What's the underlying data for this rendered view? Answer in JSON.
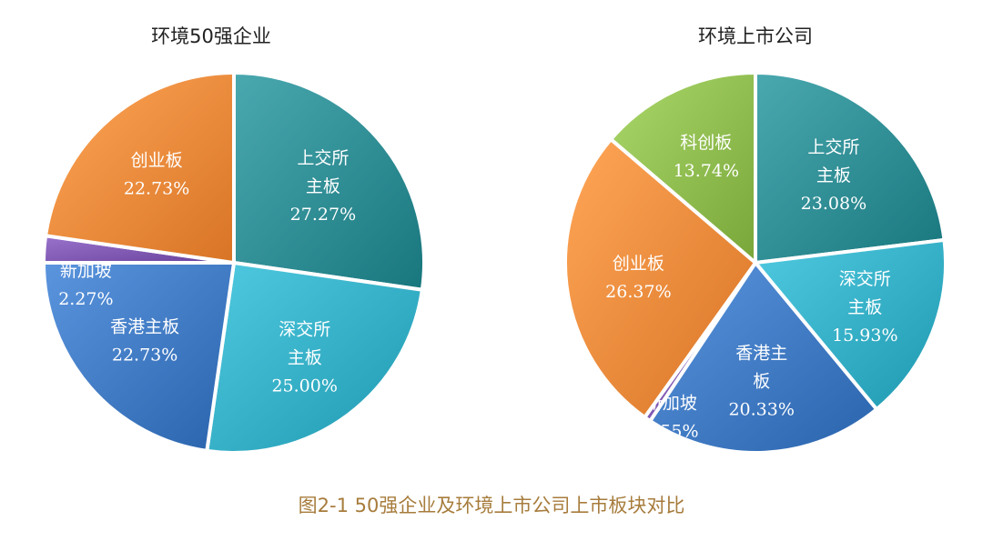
{
  "figure": {
    "caption": "图2-1 50强企业及环境上市公司上市板块对比"
  },
  "chart_data": [
    {
      "type": "pie",
      "title": "环境50强企业",
      "slices": [
        {
          "label_lines": [
            "上交所",
            "主板"
          ],
          "value": 27.27,
          "value_text": "27.27%",
          "color": "#2e8c93"
        },
        {
          "label_lines": [
            "深交所",
            "主板"
          ],
          "value": 25.0,
          "value_text": "25.00%",
          "color": "#34aec5"
        },
        {
          "label_lines": [
            "香港主板"
          ],
          "value": 22.73,
          "value_text": "22.73%",
          "color": "#3f79c2"
        },
        {
          "label_lines": [
            "新加坡"
          ],
          "value": 2.27,
          "value_text": "2.27%",
          "color": "#7e57b1"
        },
        {
          "label_lines": [
            "创业板"
          ],
          "value": 22.73,
          "value_text": "22.73%",
          "color": "#ee8a3b"
        }
      ]
    },
    {
      "type": "pie",
      "title": "环境上市公司",
      "slices": [
        {
          "label_lines": [
            "上交所",
            "主板"
          ],
          "value": 23.08,
          "value_text": "23.08%",
          "color": "#2e8c93"
        },
        {
          "label_lines": [
            "深交所",
            "主板"
          ],
          "value": 15.93,
          "value_text": "15.93%",
          "color": "#34aec5"
        },
        {
          "label_lines": [
            "香港主",
            "板"
          ],
          "value": 20.33,
          "value_text": "20.33%",
          "color": "#3f79c2"
        },
        {
          "label_lines": [
            "新加坡"
          ],
          "value": 0.55,
          "value_text": "0.55%",
          "color": "#7e57b1"
        },
        {
          "label_lines": [
            "创业板"
          ],
          "value": 26.37,
          "value_text": "26.37%",
          "color": "#ee8a3b"
        },
        {
          "label_lines": [
            "科创板"
          ],
          "value": 13.74,
          "value_text": "13.74%",
          "color": "#8fbc4f"
        }
      ]
    }
  ]
}
